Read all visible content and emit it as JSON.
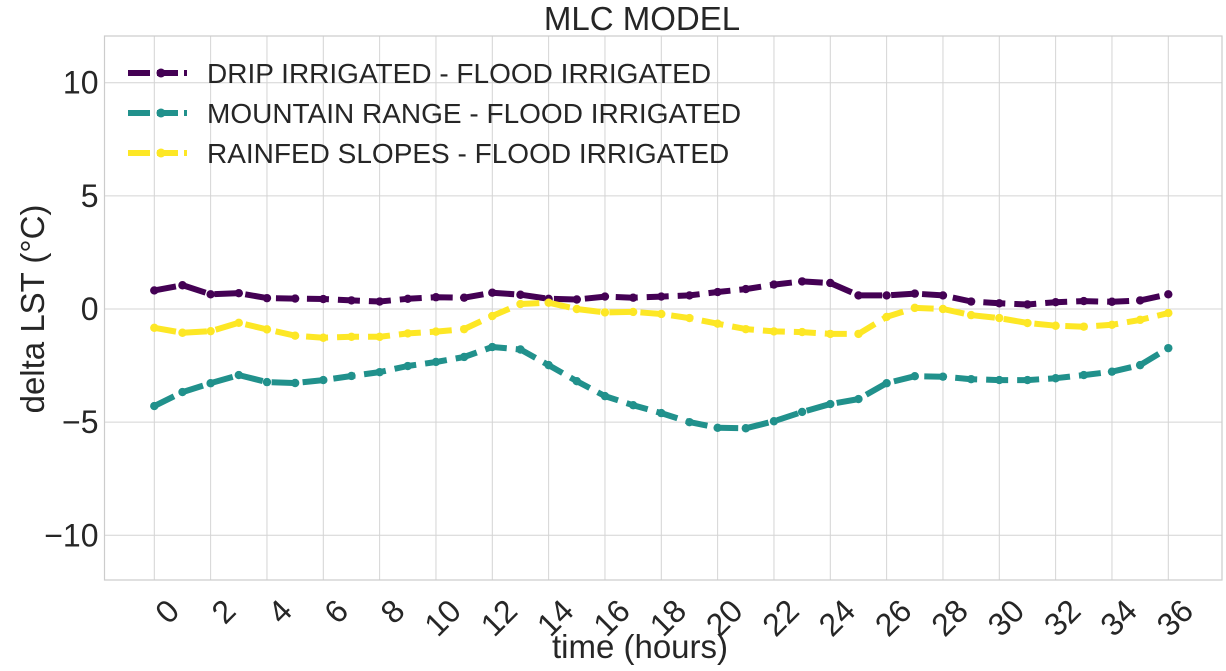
{
  "chart_data": {
    "type": "line",
    "title": "MLC MODEL",
    "xlabel": "time (hours)",
    "ylabel": "delta LST (°C)",
    "xlim": [
      -2.2,
      37.3
    ],
    "ylim": [
      -12,
      12
    ],
    "xticks": [
      0,
      2,
      4,
      6,
      8,
      10,
      12,
      14,
      16,
      18,
      20,
      22,
      24,
      26,
      28,
      30,
      32,
      34,
      36
    ],
    "xtick_labels": [
      "0",
      "2",
      "4",
      "6",
      "8",
      "10",
      "12",
      "14",
      "16",
      "18",
      "20",
      "22",
      "24",
      "26",
      "28",
      "30",
      "32",
      "34",
      "36"
    ],
    "yticks": [
      10,
      5,
      0,
      -5,
      -10
    ],
    "ytick_labels": [
      "10",
      "5",
      "0",
      "−5",
      "−10"
    ],
    "grid": true,
    "legend_position": "top-left",
    "x": [
      0,
      1,
      2,
      3,
      4,
      5,
      6,
      7,
      8,
      9,
      10,
      11,
      12,
      13,
      14,
      15,
      16,
      17,
      18,
      19,
      20,
      21,
      22,
      23,
      24,
      25,
      26,
      27,
      28,
      29,
      30,
      31,
      32,
      33,
      34,
      35,
      36
    ],
    "series": [
      {
        "name": "DRIP IRRIGATED - FLOOD IRRIGATED",
        "color": "#440154",
        "style": "dashed-marker",
        "values": [
          0.82,
          1.05,
          0.65,
          0.7,
          0.48,
          0.46,
          0.44,
          0.38,
          0.33,
          0.45,
          0.52,
          0.5,
          0.72,
          0.63,
          0.45,
          0.42,
          0.55,
          0.5,
          0.55,
          0.6,
          0.75,
          0.88,
          1.08,
          1.22,
          1.15,
          0.6,
          0.6,
          0.68,
          0.6,
          0.33,
          0.25,
          0.2,
          0.3,
          0.35,
          0.32,
          0.38,
          0.65
        ]
      },
      {
        "name": "MOUNTAIN RANGE - FLOOD IRRIGATED",
        "color": "#21918c",
        "style": "dashed-marker",
        "values": [
          -4.29,
          -3.67,
          -3.28,
          -2.92,
          -3.23,
          -3.27,
          -3.14,
          -2.96,
          -2.79,
          -2.52,
          -2.34,
          -2.12,
          -1.68,
          -1.79,
          -2.48,
          -3.19,
          -3.85,
          -4.25,
          -4.6,
          -5.0,
          -5.25,
          -5.27,
          -4.96,
          -4.55,
          -4.2,
          -3.98,
          -3.28,
          -2.97,
          -2.99,
          -3.1,
          -3.14,
          -3.14,
          -3.06,
          -2.92,
          -2.77,
          -2.48,
          -1.73
        ]
      },
      {
        "name": "RAINFED SLOPES - FLOOD IRRIGATED",
        "color": "#fde725",
        "style": "dashed-marker",
        "values": [
          -0.83,
          -1.05,
          -0.98,
          -0.61,
          -0.9,
          -1.18,
          -1.27,
          -1.23,
          -1.23,
          -1.08,
          -1.0,
          -0.89,
          -0.31,
          0.22,
          0.28,
          0.0,
          -0.15,
          -0.13,
          -0.22,
          -0.4,
          -0.65,
          -0.89,
          -0.99,
          -1.02,
          -1.1,
          -1.1,
          -0.35,
          0.05,
          0.0,
          -0.27,
          -0.4,
          -0.62,
          -0.74,
          -0.78,
          -0.7,
          -0.48,
          -0.18
        ]
      }
    ]
  }
}
